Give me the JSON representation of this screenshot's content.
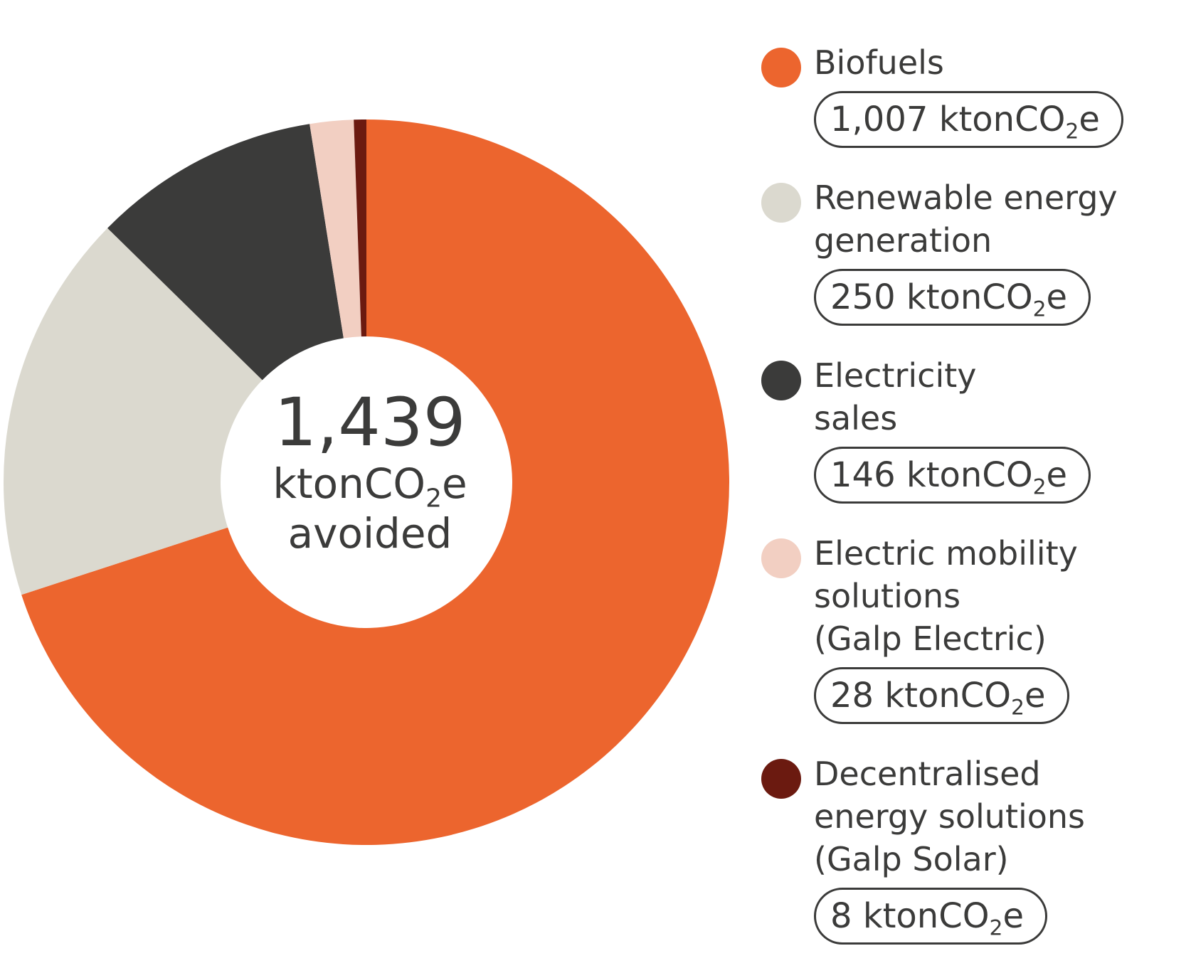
{
  "chart_data": {
    "type": "pie",
    "center": {
      "value": "1,439",
      "unit_main": "ktonCO",
      "unit_sub": "2",
      "unit_tail": "e",
      "word": "avoided"
    },
    "series": [
      {
        "name": "Biofuels",
        "value": 1007,
        "value_label": "1,007",
        "color": "#ec652e"
      },
      {
        "name": "Renewable energy generation",
        "value": 250,
        "value_label": "250",
        "color": "#dbd9cf"
      },
      {
        "name": "Electricity sales",
        "value": 146,
        "value_label": "146",
        "color": "#3b3b3a"
      },
      {
        "name": "Electric mobility solutions (Galp Electric)",
        "value": 28,
        "value_label": "28",
        "color": "#f2cfc2"
      },
      {
        "name": "Decentralised energy solutions (Galp Solar)",
        "value": 8,
        "value_label": "8",
        "color": "#6b1a10"
      }
    ],
    "legend": {
      "position": "right",
      "items": [
        {
          "label": "Biofuels",
          "pill": {
            "value": "1,007",
            "unit": "ktonCO",
            "sub": "2",
            "tail": "e"
          }
        },
        {
          "label": "Renewable energy\ngeneration",
          "pill": {
            "value": "250",
            "unit": "ktonCO",
            "sub": "2",
            "tail": "e"
          }
        },
        {
          "label": "Electricity\nsales",
          "pill": {
            "value": "146",
            "unit": "ktonCO",
            "sub": "2",
            "tail": "e"
          }
        },
        {
          "label": "Electric mobility\nsolutions\n(Galp Electric)",
          "pill": {
            "value": "28",
            "unit": "ktonCO",
            "sub": "2",
            "tail": "e"
          }
        },
        {
          "label": "Decentralised\nenergy solutions\n(Galp Solar)",
          "pill": {
            "value": "8",
            "unit": "ktonCO",
            "sub": "2",
            "tail": "e"
          }
        }
      ]
    }
  }
}
